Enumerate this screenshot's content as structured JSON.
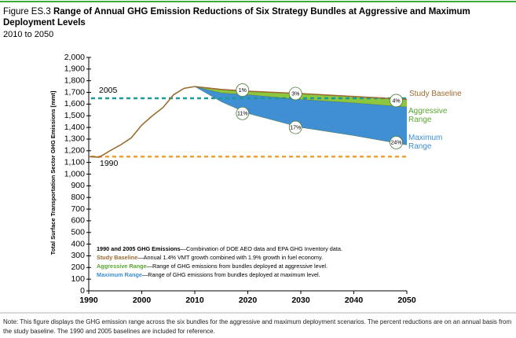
{
  "header": {
    "figure_label": "Figure ES.3",
    "title": "Range of Annual GHG Emission Reductions of Six Strategy Bundles at Aggressive and Maximum Deployment Levels",
    "subtitle": "2010 to 2050"
  },
  "chart_data": {
    "type": "range",
    "ylabel": "Total Surface Transportation Sector GHG Emissions [mmt]",
    "xlim": [
      1990,
      2050
    ],
    "ylim": [
      0,
      2000
    ],
    "xticks": [
      1990,
      2000,
      2010,
      2020,
      2030,
      2040,
      2050
    ],
    "yticks": [
      0,
      100,
      200,
      300,
      400,
      500,
      600,
      700,
      800,
      900,
      {
        "value": 1000,
        "label": "1,000"
      },
      {
        "value": 1100,
        "label": "1,100"
      },
      {
        "value": 1200,
        "label": "1,200"
      },
      {
        "value": 1300,
        "label": "1,300"
      },
      {
        "value": 1400,
        "label": "1,400"
      },
      {
        "value": 1500,
        "label": "1,500"
      },
      {
        "value": 1600,
        "label": "1,600"
      },
      {
        "value": 1700,
        "label": "1,700"
      },
      {
        "value": 1800,
        "label": "1,800"
      },
      {
        "value": 1900,
        "label": "1,900"
      },
      {
        "value": 2000,
        "label": "2,000"
      }
    ],
    "history": {
      "color": "#9c6b30",
      "x": [
        1990,
        1992,
        1994,
        1996,
        1998,
        2000,
        2002,
        2004,
        2006,
        2008,
        2010
      ],
      "values": [
        1150,
        1145,
        1200,
        1250,
        1310,
        1420,
        1500,
        1570,
        1680,
        1735,
        1750
      ]
    },
    "reference_lines": [
      {
        "label": "1990",
        "value": 1150,
        "color": "#f0a030"
      },
      {
        "label": "2005",
        "value": 1650,
        "color": "#1a9b9b"
      }
    ],
    "x": [
      2010,
      2015,
      2020,
      2030,
      2040,
      2050
    ],
    "series": [
      {
        "name": "Study Baseline",
        "color": "#9c6b30",
        "values": [
          1750,
          1725,
          1710,
          1690,
          1665,
          1640
        ]
      },
      {
        "name": "Aggressive Range",
        "color": "#8dc63f",
        "values": [
          1750,
          1695,
          1680,
          1640,
          1610,
          1575
        ]
      },
      {
        "name": "Maximum Range",
        "color": "#3f8fd2",
        "values": [
          1750,
          1620,
          1520,
          1400,
          1330,
          1250
        ]
      }
    ],
    "annotations": [
      {
        "x": 2019,
        "y": 1720,
        "label": "1%"
      },
      {
        "x": 2029,
        "y": 1690,
        "label": "3%"
      },
      {
        "x": 2048,
        "y": 1630,
        "label": "4%"
      },
      {
        "x": 2019,
        "y": 1520,
        "label": "11%"
      },
      {
        "x": 2029,
        "y": 1400,
        "label": "17%"
      },
      {
        "x": 2048,
        "y": 1270,
        "label": "24%"
      }
    ],
    "legend_notes": [
      {
        "term": "1990 and 2005 GHG Emissions",
        "color": "#000000",
        "text": "—Combination of DOE AEO data and EPA GHG Inventory data."
      },
      {
        "term": "Study Baseline",
        "color": "#9c6b30",
        "text": "—Annual 1.4% VMT growth combined with 1.9% growth in fuel economy."
      },
      {
        "term": "Aggressive Range",
        "color": "#5aa532",
        "text": "—Range of GHG emissions from bundles deployed at aggressive level."
      },
      {
        "term": "Maximum Range",
        "color": "#3f8fd2",
        "text": "—Range of GHG emissions from bundles deployed at maximum level."
      }
    ]
  },
  "note": "Note: This figure displays the GHG emission range across the six bundles for the aggressive and maximum deployment scenarios. The percent reductions are on an annual basis from the study baseline. The 1990 and 2005 baselines are included for reference."
}
